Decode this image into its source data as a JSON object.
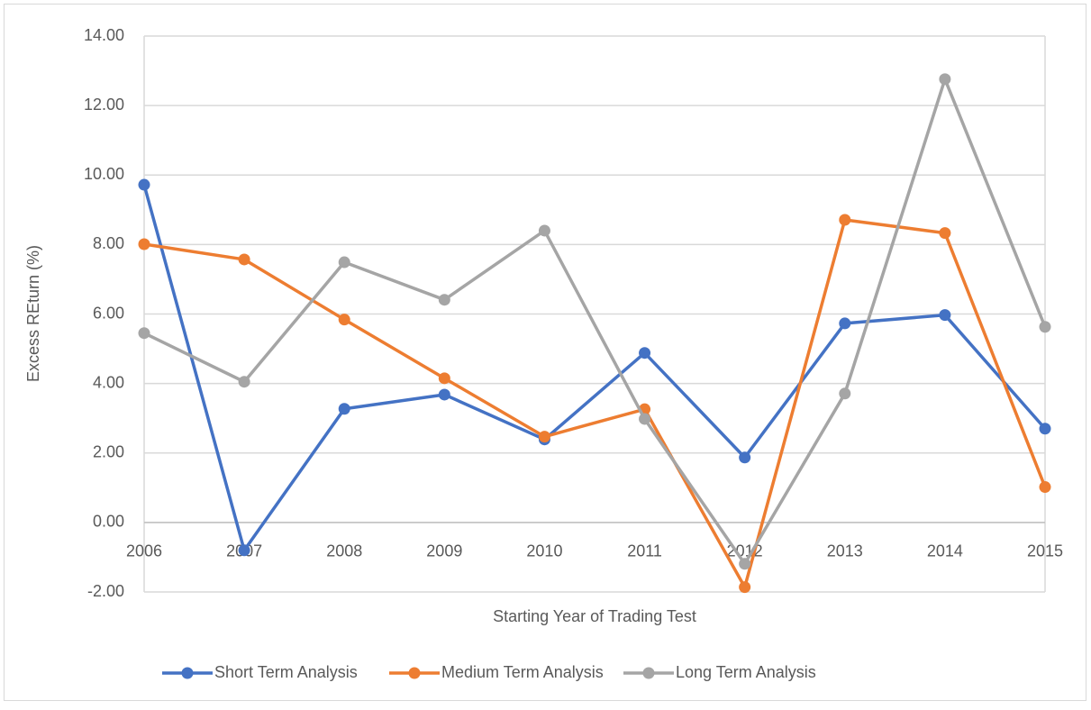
{
  "chart_data": {
    "type": "line",
    "y_label": "Excess REturn (%)",
    "x_label": "Starting Year of Trading Test",
    "categories": [
      "2006",
      "2007",
      "2008",
      "2009",
      "2010",
      "2011",
      "2012",
      "2013",
      "2014",
      "2015"
    ],
    "series": [
      {
        "name": "Short Term Analysis",
        "color": "#4472c4",
        "values": [
          9.72,
          -0.8,
          3.27,
          3.68,
          2.39,
          4.88,
          1.87,
          5.73,
          5.97,
          2.7
        ]
      },
      {
        "name": "Medium Term Analysis",
        "color": "#ed7d31",
        "values": [
          8.01,
          7.57,
          5.84,
          4.15,
          2.47,
          3.26,
          -1.86,
          8.71,
          8.33,
          1.02
        ]
      },
      {
        "name": "Long Term Analysis",
        "color": "#a5a5a5",
        "values": [
          5.45,
          4.05,
          7.49,
          6.41,
          8.4,
          2.98,
          -1.19,
          3.71,
          12.76,
          5.63
        ]
      }
    ],
    "ylim": [
      -2,
      14
    ],
    "yticks": [
      {
        "value": -2,
        "label": "-2.00"
      },
      {
        "value": 0,
        "label": "0.00"
      },
      {
        "value": 2,
        "label": "2.00"
      },
      {
        "value": 4,
        "label": "4.00"
      },
      {
        "value": 6,
        "label": "6.00"
      },
      {
        "value": 8,
        "label": "8.00"
      },
      {
        "value": 10,
        "label": "10.00"
      },
      {
        "value": 12,
        "label": "12.00"
      },
      {
        "value": 14,
        "label": "14.00"
      }
    ],
    "grid": true,
    "legend": "bottom"
  }
}
